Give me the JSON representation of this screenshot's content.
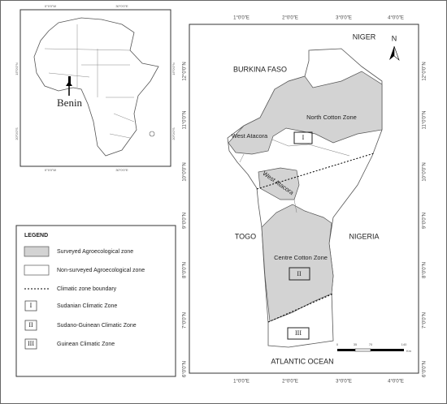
{
  "inset": {
    "top_ticks": [
      "0°0'0\"W",
      "30°0'0\"E"
    ],
    "bottom_ticks": [
      "0°0'0\"W",
      "30°0'0\"E"
    ],
    "left_ticks": [
      "15°0'0\"N",
      "20°0'0\"S"
    ],
    "right_ticks": [
      "15°0'0\"N",
      "20°0'0\"S"
    ],
    "label": "Benin"
  },
  "map": {
    "top_ticks": [
      "1°0'0\"E",
      "2°0'0\"E",
      "3°0'0\"E",
      "4°0'0\"E"
    ],
    "side_ticks": [
      "12°0'0\"N",
      "11°0'0\"N",
      "10°0'0\"N",
      "9°0'0\"N",
      "8°0'0\"N",
      "7°0'0\"N",
      "6°0'0\"N"
    ],
    "countries": [
      "NIGER",
      "BURKINA FASO",
      "TOGO",
      "NIGERIA",
      "ATLANTIC OCEAN"
    ],
    "zones": [
      "North Cotton Zone",
      "West Atacora",
      "West Atacora",
      "Centre Cotton Zone"
    ],
    "boxes": [
      "I",
      "II",
      "III"
    ],
    "north": "N",
    "scale": [
      "0",
      "35",
      "70",
      "140",
      "Km"
    ]
  },
  "legend": {
    "title": "LEGEND",
    "items": [
      "Surveyed Agroecological zone",
      "Non-surveyed Agroecological zone",
      "Climatic zone boundary",
      "Sudanian Climatic Zone",
      "Sudano-Guinean Climatic Zone",
      "Guinean Climatic Zone"
    ],
    "symbols": [
      "I",
      "II",
      "III"
    ]
  }
}
